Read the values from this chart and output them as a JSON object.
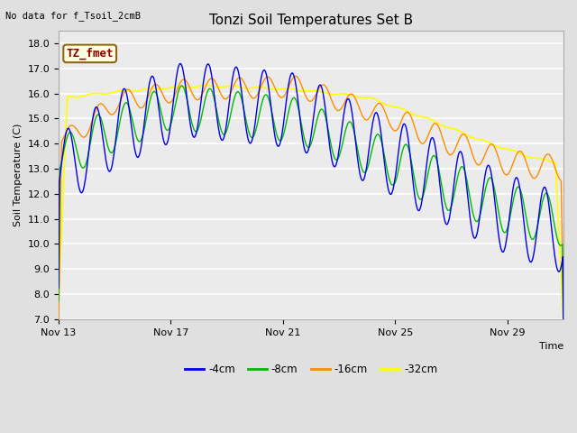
{
  "title": "Tonzi Soil Temperatures Set B",
  "top_left_text": "No data for f_Tsoil_2cmB",
  "ylabel": "Soil Temperature (C)",
  "xlabel": "Time",
  "annotation_label": "TZ_fmet",
  "annotation_color": "#8B0000",
  "annotation_bg": "#FFFFE0",
  "annotation_border": "#8B6914",
  "ylim": [
    7.0,
    18.5
  ],
  "yticks": [
    7.0,
    8.0,
    9.0,
    10.0,
    11.0,
    12.0,
    13.0,
    14.0,
    15.0,
    16.0,
    17.0,
    18.0
  ],
  "xtick_positions": [
    0,
    4,
    8,
    12,
    16
  ],
  "xtick_labels": [
    "Nov 13",
    "Nov 17",
    "Nov 21",
    "Nov 25",
    "Nov 29"
  ],
  "xlim": [
    0,
    18
  ],
  "bg_color": "#E0E0E0",
  "plot_bg": "#EBEBEB",
  "grid_color": "#FFFFFF",
  "line_colors": {
    "-4cm": "#0000EE",
    "-8cm": "#00BB00",
    "-16cm": "#FF8C00",
    "-32cm": "#FFFF00"
  },
  "line_widths": {
    "-4cm": 1.0,
    "-8cm": 1.0,
    "-16cm": 1.0,
    "-32cm": 1.2
  },
  "legend_labels": [
    "-4cm",
    "-8cm",
    "-16cm",
    "-32cm"
  ]
}
